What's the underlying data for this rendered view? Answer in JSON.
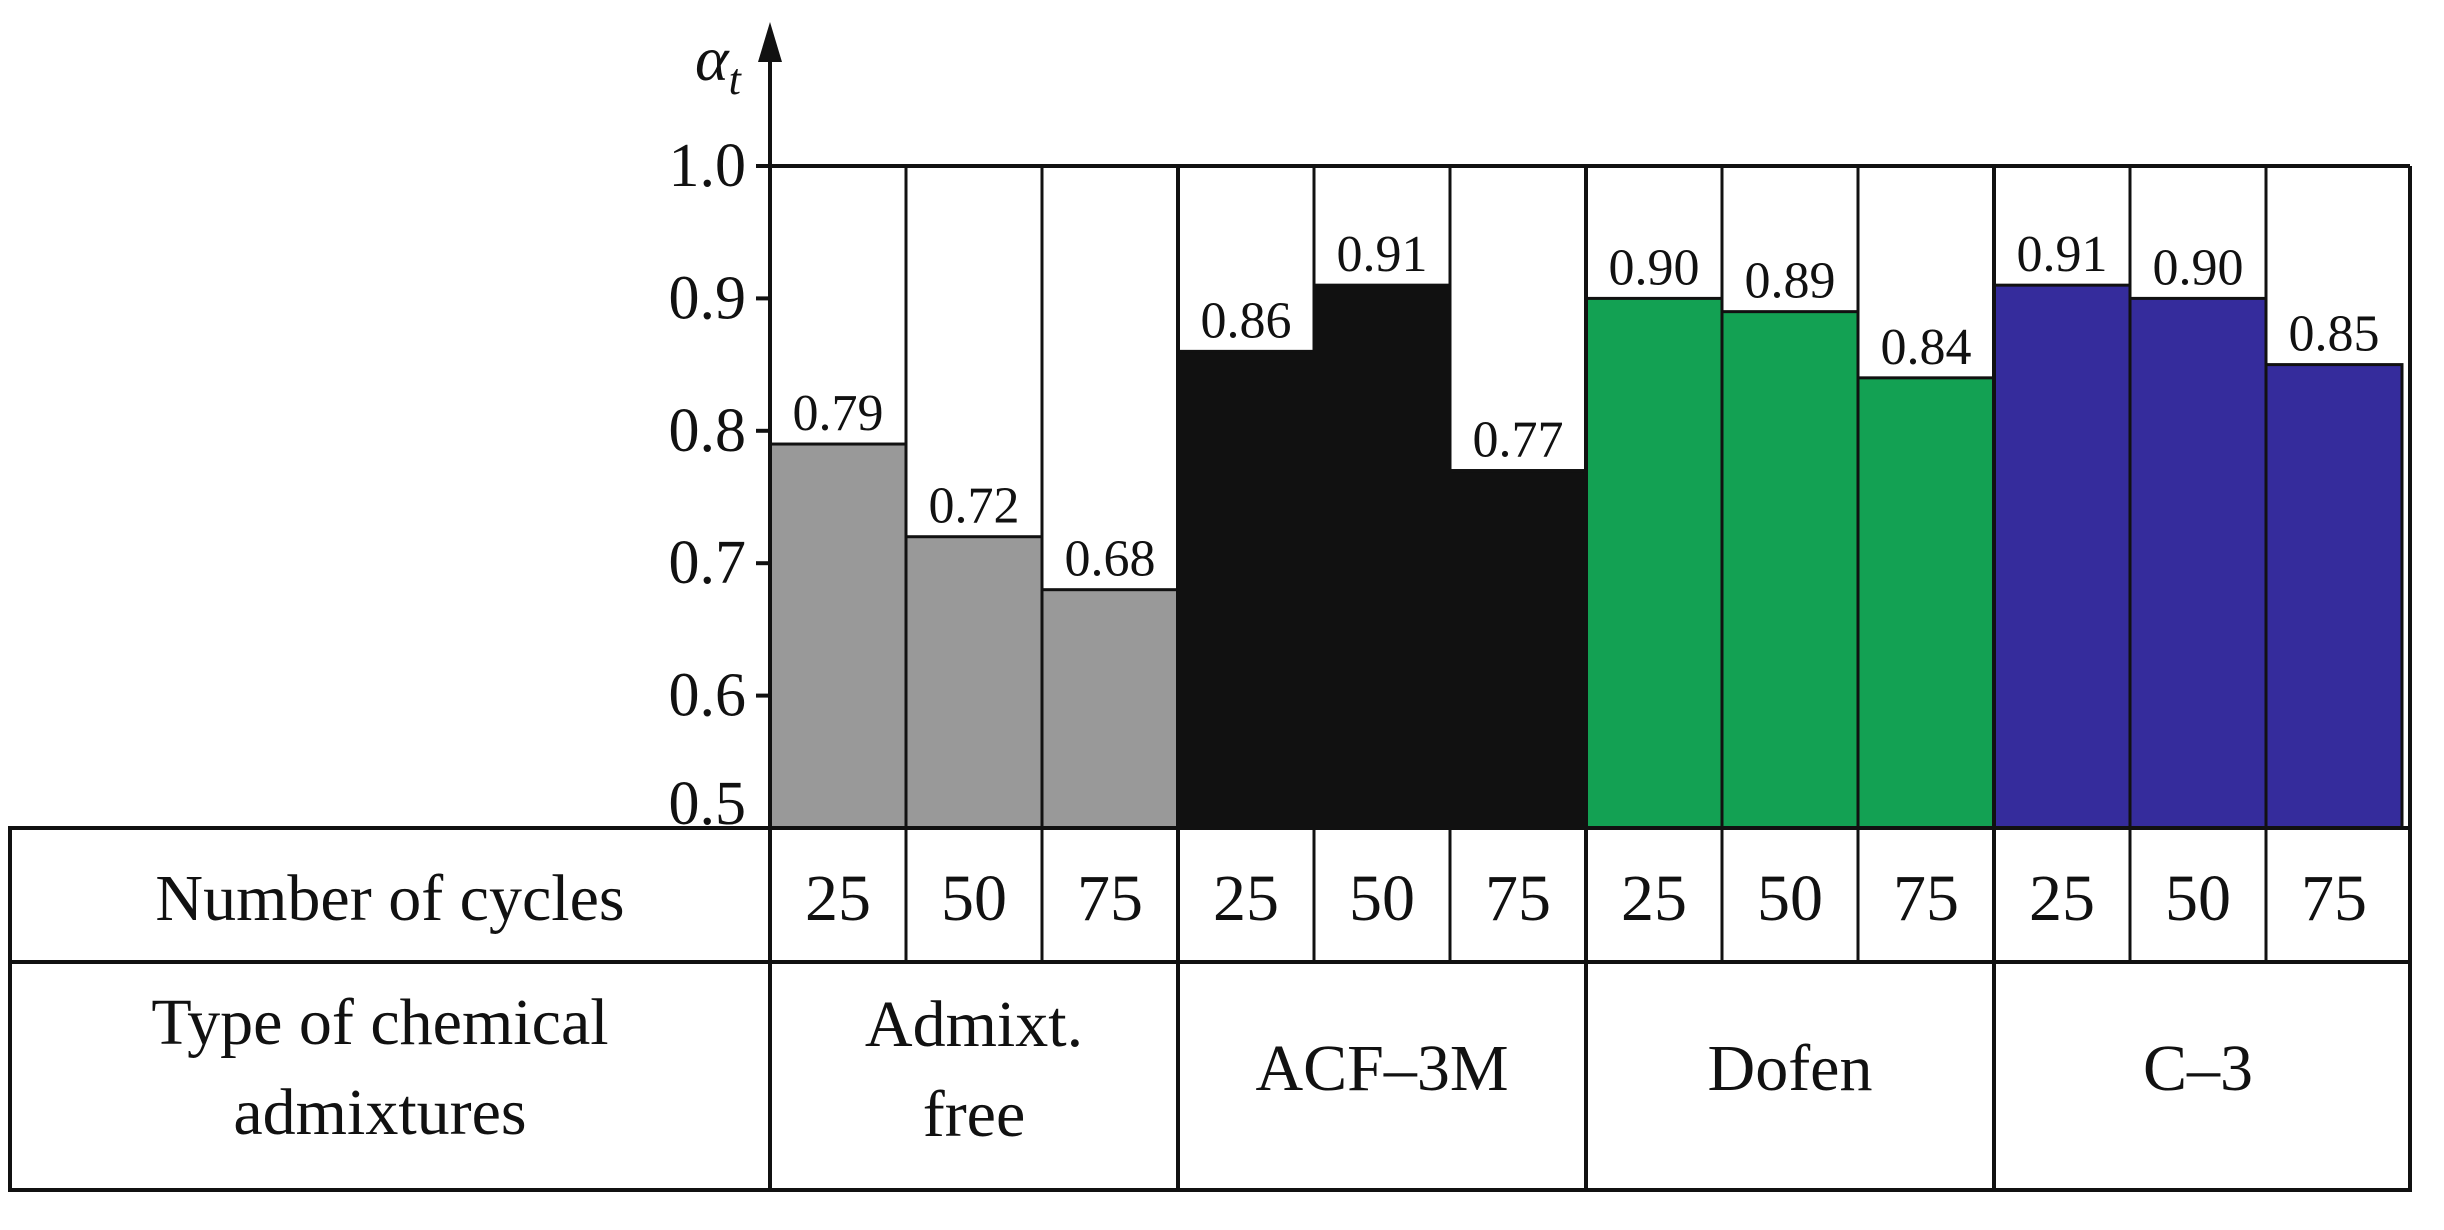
{
  "chart_data": {
    "type": "bar",
    "y_axis_symbol": "α",
    "y_axis_subscript": "t",
    "ylim": [
      0.5,
      1.0
    ],
    "y_ticks": [
      "0.5",
      "0.6",
      "0.7",
      "0.8",
      "0.9",
      "1.0"
    ],
    "grid": false,
    "legend": "none",
    "row_labels": {
      "cycles": "Number of cycles",
      "admixture_line1": "Type of chemical",
      "admixture_line2": "admixtures"
    },
    "groups": [
      {
        "label_lines": [
          "Admixt.",
          "free"
        ],
        "color": "#999999",
        "bars": [
          {
            "cycles": "25",
            "value": 0.79,
            "label": "0.79"
          },
          {
            "cycles": "50",
            "value": 0.72,
            "label": "0.72"
          },
          {
            "cycles": "75",
            "value": 0.68,
            "label": "0.68"
          }
        ]
      },
      {
        "label_lines": [
          "ACF–3M"
        ],
        "color": "#111111",
        "bars": [
          {
            "cycles": "25",
            "value": 0.86,
            "label": "0.86"
          },
          {
            "cycles": "50",
            "value": 0.91,
            "label": "0.91"
          },
          {
            "cycles": "75",
            "value": 0.77,
            "label": "0.77"
          }
        ]
      },
      {
        "label_lines": [
          "Dofen"
        ],
        "color": "#13a153",
        "bars": [
          {
            "cycles": "25",
            "value": 0.9,
            "label": "0.90"
          },
          {
            "cycles": "50",
            "value": 0.89,
            "label": "0.89"
          },
          {
            "cycles": "75",
            "value": 0.84,
            "label": "0.84"
          }
        ]
      },
      {
        "label_lines": [
          "C–3"
        ],
        "color": "#352c9c",
        "bars": [
          {
            "cycles": "25",
            "value": 0.91,
            "label": "0.91"
          },
          {
            "cycles": "50",
            "value": 0.9,
            "label": "0.90"
          },
          {
            "cycles": "75",
            "value": 0.85,
            "label": "0.85"
          }
        ]
      }
    ]
  }
}
